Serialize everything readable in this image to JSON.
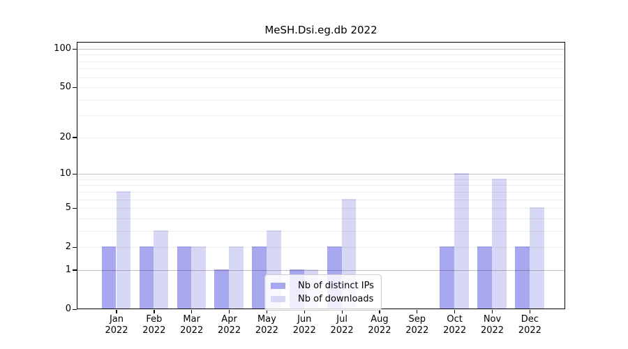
{
  "title": "MeSH.Dsi.eg.db 2022",
  "chart_data": {
    "type": "bar",
    "title": "MeSH.Dsi.eg.db 2022",
    "year": "2022",
    "categories": [
      "Jan",
      "Feb",
      "Mar",
      "Apr",
      "May",
      "Jun",
      "Jul",
      "Aug",
      "Sep",
      "Oct",
      "Nov",
      "Dec"
    ],
    "series": [
      {
        "name": "Nb of distinct IPs",
        "color": "#a8a8f0",
        "values": [
          2,
          2,
          2,
          1,
          2,
          1,
          2,
          0,
          0,
          2,
          2,
          2
        ]
      },
      {
        "name": "Nb of downloads",
        "color": "#d7d7f6",
        "values": [
          7,
          3,
          2,
          2,
          3,
          1,
          6,
          0,
          0,
          10,
          9,
          5
        ]
      }
    ],
    "yscale": "log1p",
    "ylim": [
      0,
      100
    ],
    "y_tick_labels": [
      0,
      1,
      2,
      5,
      10,
      20,
      50,
      100
    ],
    "y_major_gridlines": [
      1,
      10,
      100
    ],
    "y_minor_gridlines": [
      2,
      3,
      4,
      5,
      6,
      7,
      8,
      9,
      20,
      30,
      40,
      50,
      60,
      70,
      80,
      90
    ],
    "grid": true,
    "legend_position": "lower right inside",
    "xlabel": "",
    "ylabel": ""
  },
  "legend": {
    "items": [
      {
        "label": "Nb of distinct IPs",
        "color": "#a8a8f0"
      },
      {
        "label": "Nb of downloads",
        "color": "#d7d7f6"
      }
    ]
  }
}
